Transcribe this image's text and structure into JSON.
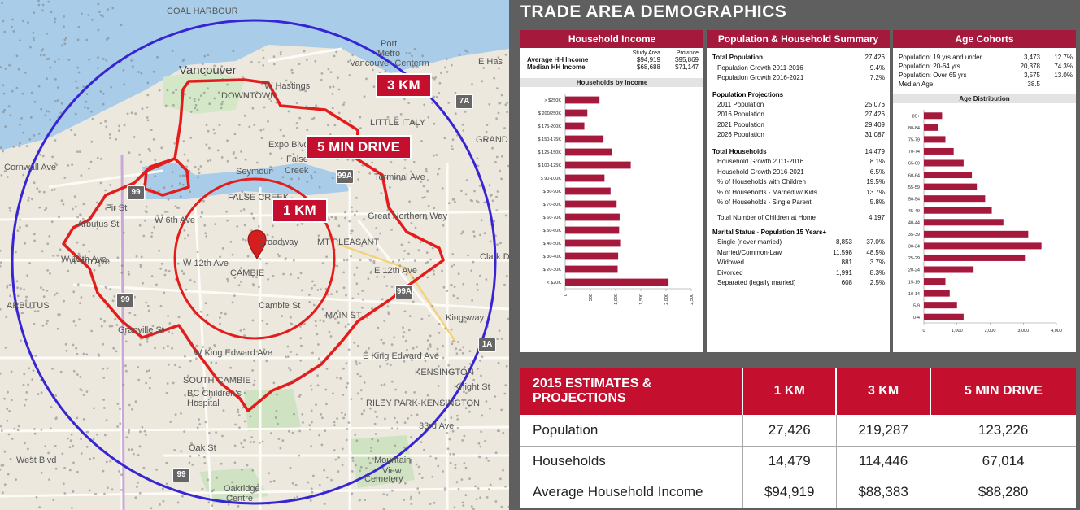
{
  "map": {
    "tags": {
      "r3km": "3 KM",
      "drive5": "5 MIN DRIVE",
      "r1km": "1 KM"
    },
    "labels": [
      "COAL HARBOUR",
      "Port",
      "Metro",
      "Vancouver-Centerm",
      "Vancouver",
      "W Hastings",
      "DOWNTOWN",
      "LITTLE ITALY",
      "E Has",
      "GRAND",
      "Cornwall Ave",
      "False",
      "Creek",
      "Terminal Ave",
      "FALSE CREEK",
      "W 6th Ave",
      "Great Northern Way",
      "Broadway",
      "MT PLEASANT",
      "W 12th Ave",
      "CAMBIE",
      "W 12th Ave",
      "E 12th Ave",
      "Clark Dr",
      "Kingsway",
      "MAIN ST",
      "ARBUTUS",
      "Cambie St",
      "Granville St",
      "W King Edward Ave",
      "E King Edward Ave",
      "KENSINGTON",
      "SOUTH CAMBIE",
      "BC Children's",
      "Hospital",
      "RILEY PARK-KENSINGTON",
      "33rd Ave",
      "Mountain",
      "View",
      "Cemetery",
      "Oakridge",
      "Centre",
      "Oak St",
      "Knight St",
      "W 4th Ave",
      "Fir St",
      "Arbutus St",
      "West Blvd",
      "Expo Blvd",
      "Seymour"
    ],
    "shields": [
      "7A",
      "99A",
      "99",
      "99A",
      "99",
      "99",
      "1A"
    ]
  },
  "title": "TRADE AREA DEMOGRAPHICS",
  "income": {
    "header": "Household Income",
    "col_study": "Study Area",
    "col_province": "Province",
    "rows": [
      {
        "label": "Average HH Income",
        "study": "$94,919",
        "province": "$95,869"
      },
      {
        "label": "Median HH Income",
        "study": "$68,688",
        "province": "$71,147"
      }
    ],
    "chart_title": "Households by Income"
  },
  "summary": {
    "header": "Population & Household Summary",
    "total_population": {
      "label": "Total Population",
      "value": "27,426"
    },
    "pop_growth": [
      {
        "label": "Population Growth 2011-2016",
        "value": "9.4%"
      },
      {
        "label": "Population Growth 2016-2021",
        "value": "7.2%"
      }
    ],
    "projections_title": "Population Projections",
    "projections": [
      {
        "label": "2011 Population",
        "value": "25,076"
      },
      {
        "label": "2016 Population",
        "value": "27,426"
      },
      {
        "label": "2021 Population",
        "value": "29,409"
      },
      {
        "label": "2026 Population",
        "value": "31,087"
      }
    ],
    "total_households": {
      "label": "Total Households",
      "value": "14,479"
    },
    "hh_rows": [
      {
        "label": "Household Growth 2011-2016",
        "value": "8.1%"
      },
      {
        "label": "Household Growth 2016-2021",
        "value": "6.5%"
      },
      {
        "label": "% of Households with Children",
        "value": "19.5%"
      },
      {
        "label": "% of Households - Married w/ Kids",
        "value": "13.7%"
      },
      {
        "label": "% of Households - Single Parent",
        "value": "5.8%"
      }
    ],
    "children": {
      "label": "Total Number of Children at Home",
      "value": "4,197"
    },
    "marital_title": "Marital Status - Population 15 Years+",
    "marital": [
      {
        "label": "Single (never married)",
        "count": "8,853",
        "pct": "37.0%"
      },
      {
        "label": "Married/Common-Law",
        "count": "11,598",
        "pct": "48.5%"
      },
      {
        "label": "Widowed",
        "count": "881",
        "pct": "3.7%"
      },
      {
        "label": "Divorced",
        "count": "1,991",
        "pct": "8.3%"
      },
      {
        "label": "Separated (legally married)",
        "count": "608",
        "pct": "2.5%"
      }
    ]
  },
  "age": {
    "header": "Age Cohorts",
    "rows": [
      {
        "label": "Population: 19 yrs and under",
        "count": "3,473",
        "pct": "12.7%"
      },
      {
        "label": "Population: 20-64 yrs",
        "count": "20,378",
        "pct": "74.3%"
      },
      {
        "label": "Population: Over 65 yrs",
        "count": "3,575",
        "pct": "13.0%"
      },
      {
        "label": "Median Age",
        "count": "38.5",
        "pct": ""
      }
    ],
    "chart_title": "Age Distribution"
  },
  "estimates": {
    "header": "2015 ESTIMATES & PROJECTIONS",
    "columns": [
      "1 KM",
      "3 KM",
      "5 MIN DRIVE"
    ],
    "rows": [
      {
        "label": "Population",
        "values": [
          "27,426",
          "219,287",
          "123,226"
        ]
      },
      {
        "label": "Households",
        "values": [
          "14,479",
          "114,446",
          "67,014"
        ]
      },
      {
        "label": "Average Household Income",
        "values": [
          "$94,919",
          "$88,383",
          "$88,280"
        ]
      }
    ]
  },
  "chart_data": [
    {
      "type": "bar",
      "orientation": "horizontal",
      "title": "Households by Income",
      "categories": [
        "> $250K",
        "$ 200/250K",
        "$ 175-200K",
        "$ 150-175K",
        "$ 125-150K",
        "$ 100-125K",
        "$ 90-100K",
        "$ 80-90K",
        "$ 70-80K",
        "$ 60-70K",
        "$ 50-60K",
        "$ 40-50K",
        "$ 30-40K",
        "$ 20-30K",
        "< $20K"
      ],
      "values": [
        680,
        440,
        380,
        760,
        920,
        1300,
        780,
        900,
        1020,
        1080,
        1070,
        1090,
        1050,
        1040,
        2050
      ],
      "xticks": [
        "0",
        "500",
        "1,000",
        "1,500",
        "2,000",
        "2,500"
      ],
      "xlim": [
        0,
        2500
      ],
      "color": "#a51a3c"
    },
    {
      "type": "bar",
      "orientation": "horizontal",
      "title": "Age Distribution",
      "categories": [
        "85+",
        "80-84",
        "75-79",
        "70-74",
        "65-69",
        "60-64",
        "55-59",
        "50-54",
        "45-49",
        "40-44",
        "35-39",
        "30-34",
        "25-29",
        "20-24",
        "15-19",
        "10-14",
        "5-9",
        "0-4"
      ],
      "values": [
        550,
        430,
        650,
        900,
        1200,
        1450,
        1600,
        1850,
        2050,
        2400,
        3150,
        3550,
        3050,
        1500,
        650,
        780,
        1000,
        1200
      ],
      "xticks": [
        "0",
        "1,000",
        "2,000",
        "3,000",
        "4,000"
      ],
      "xlim": [
        0,
        4000
      ],
      "color": "#a51a3c"
    }
  ]
}
